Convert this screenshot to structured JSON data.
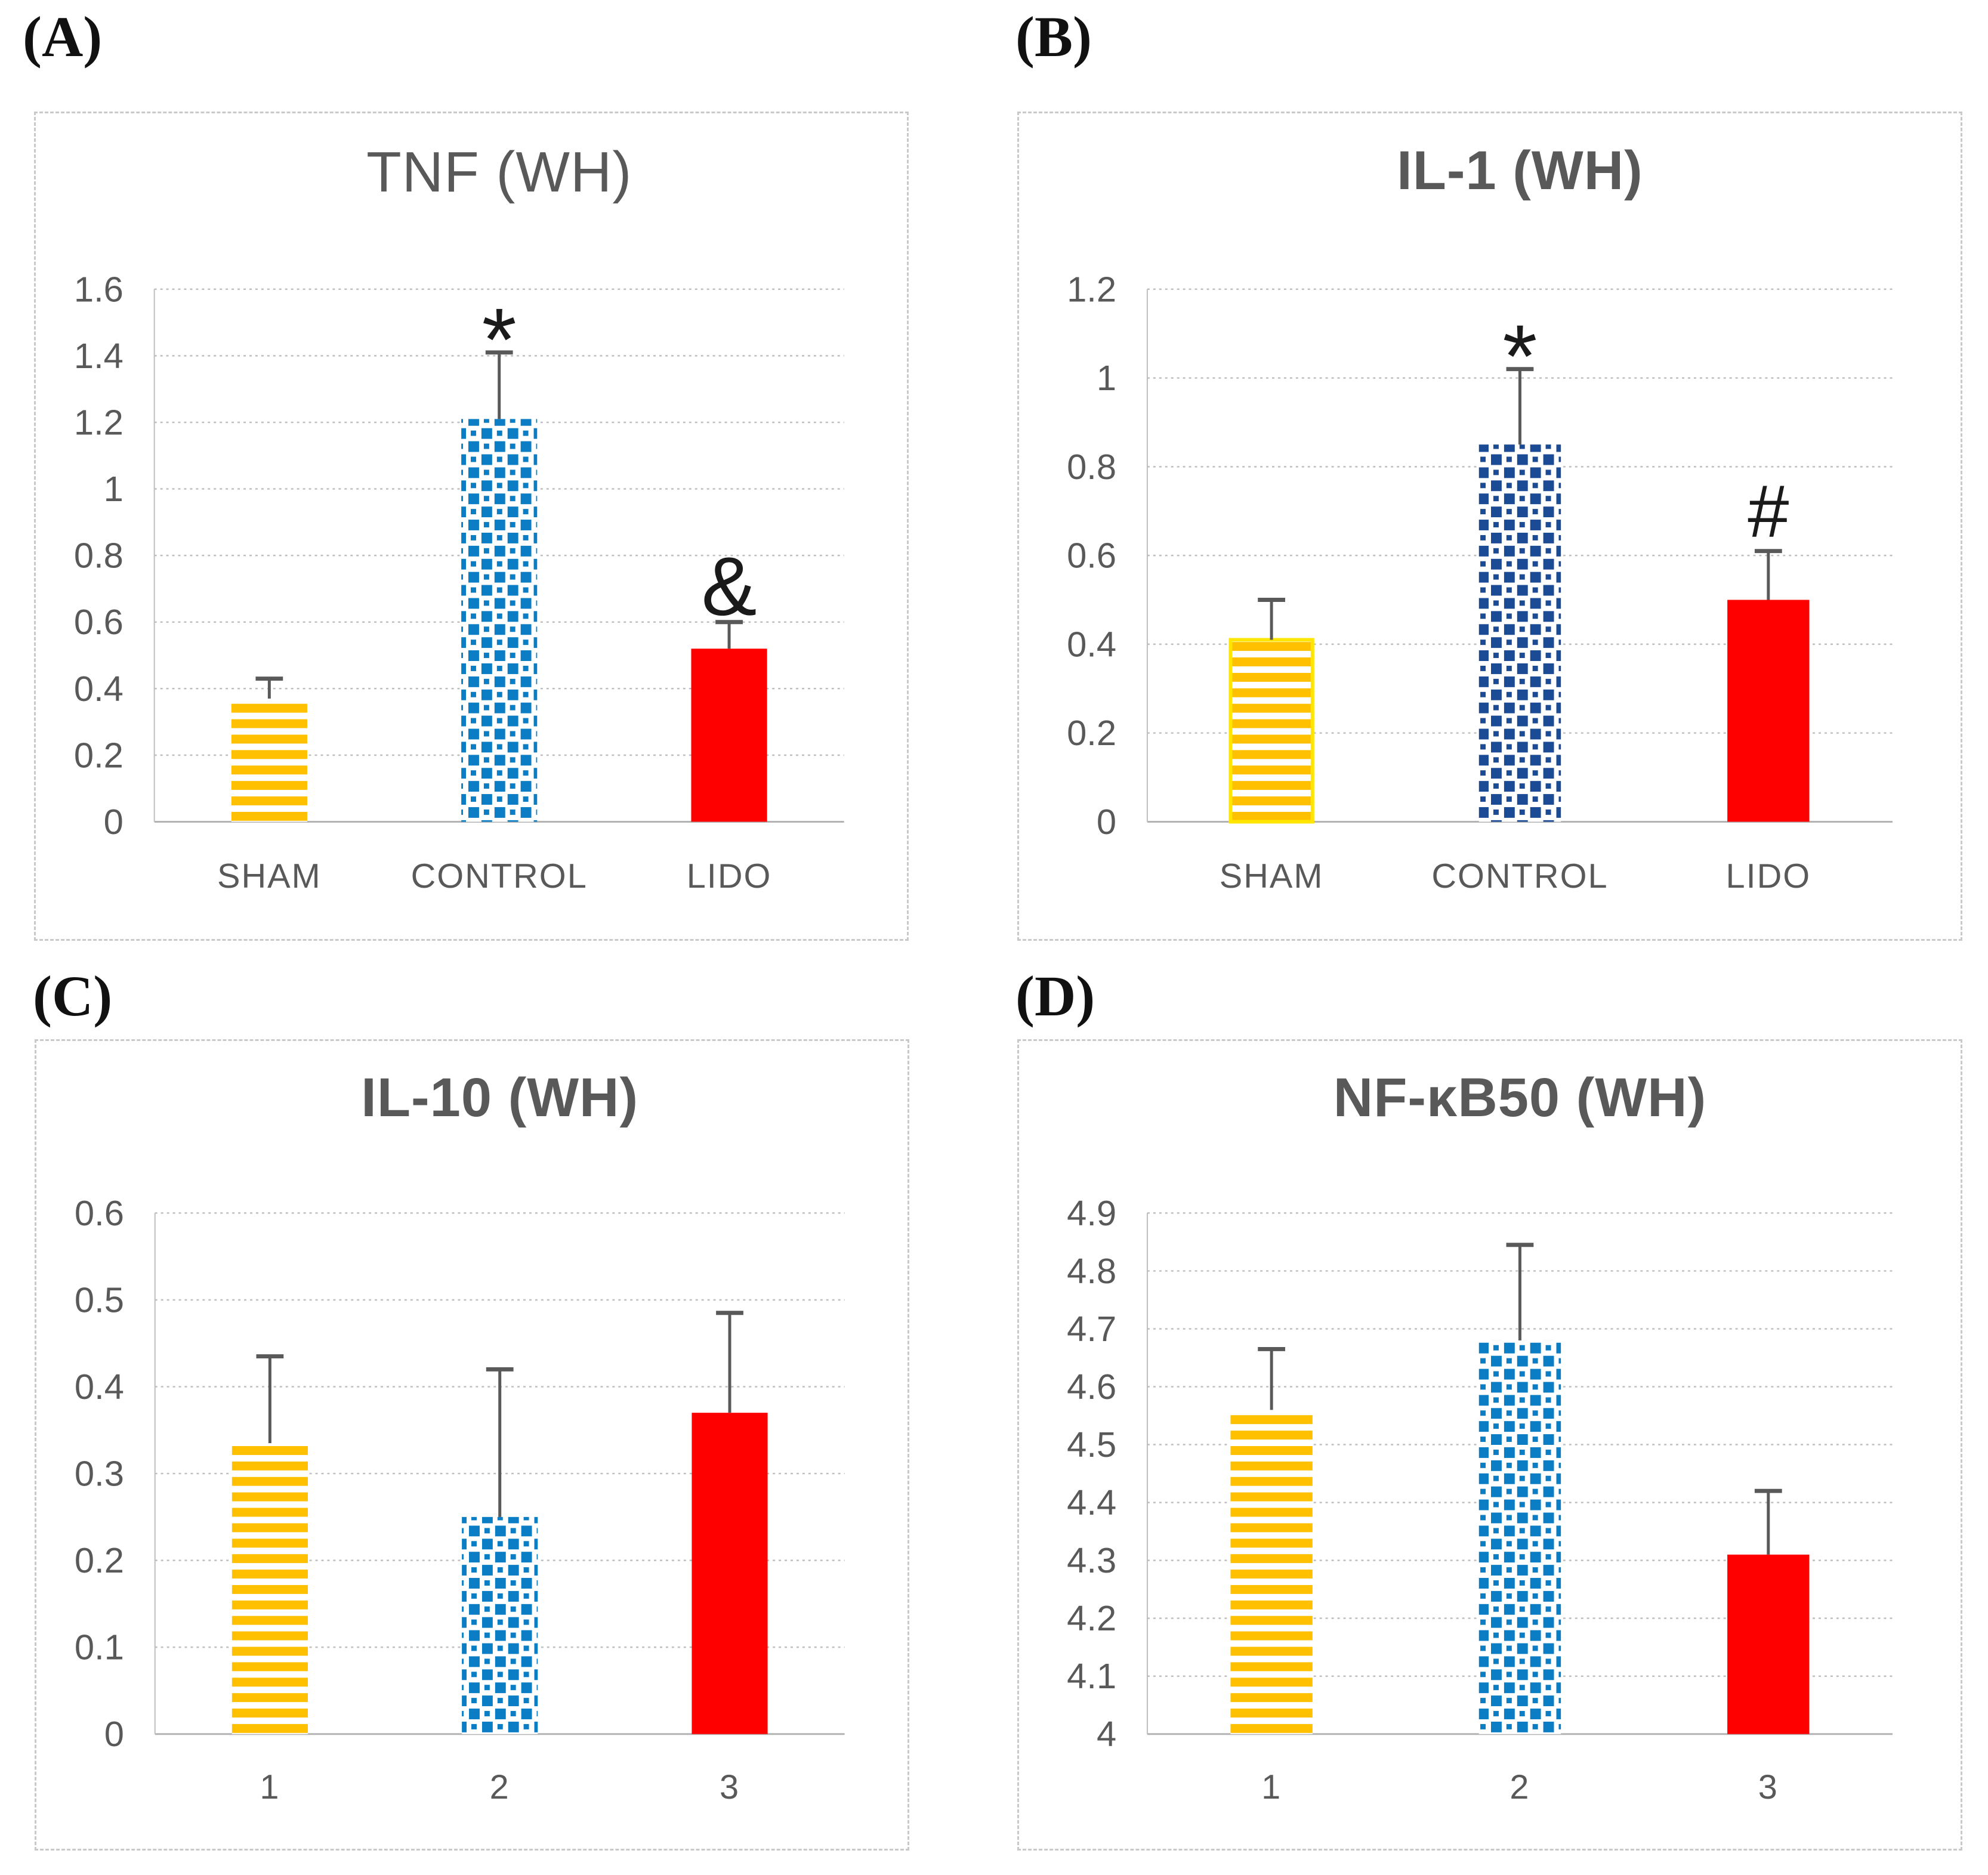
{
  "colors": {
    "amber": "#FFC000",
    "yellow_outline": "#FFE600",
    "blue": "#0B7DC4",
    "navy": "#1C4B96",
    "red": "#FF0000",
    "text": "#595959",
    "grid": "#BFBFBF",
    "axis": "#B3B3B3",
    "error_bar": "#595959",
    "frame_border": "#C9C9C9",
    "annotation": "#1A1A1A",
    "background": "#FFFFFF"
  },
  "chart_data": [
    {
      "type": "bar",
      "panel_label": "(A)",
      "title": "TNF (WH)",
      "title_bold": false,
      "categories": [
        "SHAM",
        "CONTROL",
        "LIDO"
      ],
      "values": [
        0.37,
        1.21,
        0.52
      ],
      "error_top": [
        0.43,
        1.41,
        0.6
      ],
      "annotations": [
        "",
        "*",
        "&"
      ],
      "bar_styles": [
        "amber-stripes",
        "blue-checker",
        "red-solid"
      ],
      "ylim": [
        0,
        1.6
      ],
      "yticks": [
        "0",
        "0.2",
        "0.4",
        "0.6",
        "0.8",
        "1",
        "1.2",
        "1.4",
        "1.6"
      ],
      "xlabel": "",
      "ylabel": "",
      "grid": true,
      "legend": "none"
    },
    {
      "type": "bar",
      "panel_label": "(B)",
      "title": "IL-1 (WH)",
      "title_bold": true,
      "categories": [
        "SHAM",
        "CONTROL",
        "LIDO"
      ],
      "values": [
        0.41,
        0.85,
        0.5
      ],
      "error_top": [
        0.5,
        1.02,
        0.61
      ],
      "annotations": [
        "",
        "*",
        "#"
      ],
      "bar_styles": [
        "amber-stripes-outlined",
        "navy-checker",
        "red-solid"
      ],
      "ylim": [
        0,
        1.2
      ],
      "yticks": [
        "0",
        "0.2",
        "0.4",
        "0.6",
        "0.8",
        "1",
        "1.2"
      ],
      "xlabel": "",
      "ylabel": "",
      "grid": true,
      "legend": "none"
    },
    {
      "type": "bar",
      "panel_label": "(C)",
      "title": "IL-10 (WH)",
      "title_bold": true,
      "categories": [
        "1",
        "2",
        "3"
      ],
      "values": [
        0.335,
        0.25,
        0.37
      ],
      "error_top": [
        0.435,
        0.42,
        0.485
      ],
      "annotations": [
        "",
        "",
        ""
      ],
      "bar_styles": [
        "amber-stripes",
        "blue-checker",
        "red-solid"
      ],
      "ylim": [
        0,
        0.6
      ],
      "yticks": [
        "0",
        "0.1",
        "0.2",
        "0.3",
        "0.4",
        "0.5",
        "0.6"
      ],
      "xlabel": "",
      "ylabel": "",
      "grid": true,
      "legend": "none"
    },
    {
      "type": "bar",
      "panel_label": "(D)",
      "title": "NF-κB50 (WH)",
      "title_bold": true,
      "categories": [
        "1",
        "2",
        "3"
      ],
      "values": [
        4.56,
        4.68,
        4.31
      ],
      "error_top": [
        4.665,
        4.845,
        4.42
      ],
      "annotations": [
        "",
        "",
        ""
      ],
      "bar_styles": [
        "amber-stripes",
        "blue-checker",
        "red-solid"
      ],
      "ylim": [
        4,
        4.9
      ],
      "yticks": [
        "4",
        "4.1",
        "4.2",
        "4.3",
        "4.4",
        "4.5",
        "4.6",
        "4.7",
        "4.8",
        "4.9"
      ],
      "xlabel": "",
      "ylabel": "",
      "grid": true,
      "legend": "none"
    }
  ]
}
